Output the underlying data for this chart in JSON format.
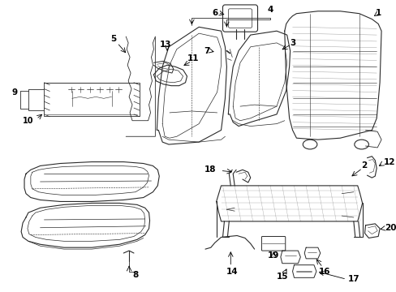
{
  "bg_color": "#ffffff",
  "lw": 0.8,
  "color": "#2a2a2a"
}
